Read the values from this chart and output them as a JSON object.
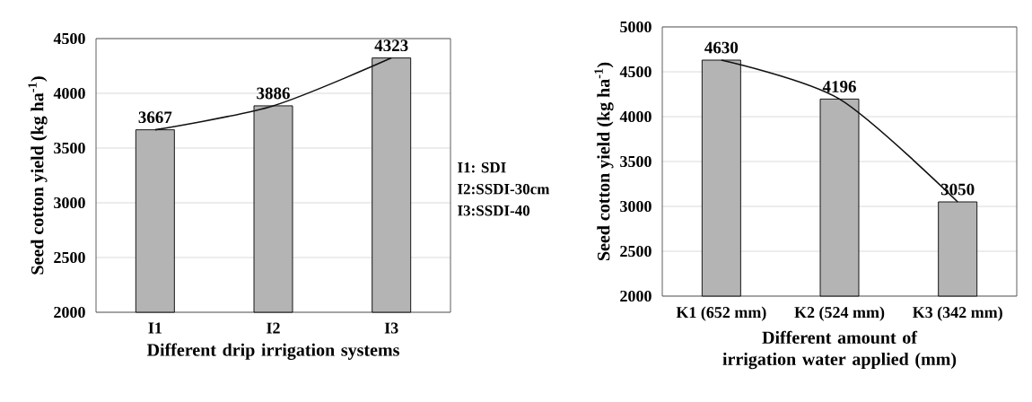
{
  "chart_data": [
    {
      "type": "bar",
      "categories": [
        "I1",
        "I2",
        "I3"
      ],
      "xlabel": "Different drip irrigation systems",
      "ylabel": "Seed cotton yield (kg ha$^{-1}$)",
      "ylim": [
        2000,
        4500
      ],
      "yticks": [
        2000,
        2500,
        3000,
        3500,
        4000,
        4500
      ],
      "grid": "y",
      "annotations": [
        "I1: SDI",
        "I2:SSDI-30cm",
        "I3:SSDI-40"
      ],
      "series": [
        {
          "color": "#b4b4b4",
          "values": [
            3667,
            3886,
            4323
          ],
          "value_labels": [
            "3667",
            "3886",
            "4323"
          ]
        },
        {
          "type": "line",
          "color": "#111111",
          "marker": "none",
          "values": [
            3667,
            3886,
            4323
          ]
        }
      ]
    },
    {
      "type": "bar",
      "categories": [
        "K1 (652 mm)",
        "K2 (524 mm)",
        "K3 (342 mm)"
      ],
      "xlabel": "Different amount of irrigation water applied (mm)",
      "ylabel": "Seed cotton yield (kg ha$^{-1}$)",
      "ylim": [
        2000,
        5000
      ],
      "yticks": [
        2000,
        2500,
        3000,
        3500,
        4000,
        4500,
        5000
      ],
      "grid": "y",
      "series": [
        {
          "color": "#b4b4b4",
          "values": [
            4630,
            4196,
            3050
          ],
          "value_labels": [
            "4630",
            "4196",
            "3050"
          ]
        },
        {
          "type": "line",
          "color": "#111111",
          "marker": "none",
          "values": [
            4630,
            4196,
            3050
          ]
        }
      ]
    }
  ]
}
